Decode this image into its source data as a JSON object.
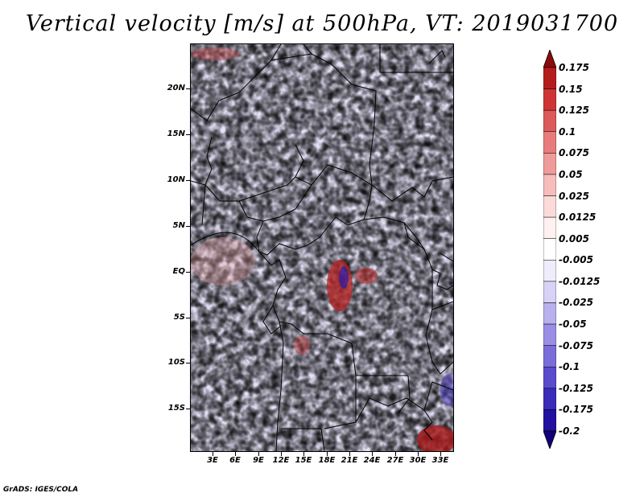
{
  "title": "Vertical velocity [m/s] at 500hPa, VT: 2019031700",
  "credit": "GrADS: IGES/COLA",
  "map": {
    "lat_labels": [
      "20N",
      "15N",
      "10N",
      "5N",
      "EQ",
      "5S",
      "10S",
      "15S"
    ],
    "lon_labels": [
      "3E",
      "6E",
      "9E",
      "12E",
      "15E",
      "18E",
      "21E",
      "24E",
      "27E",
      "30E",
      "33E"
    ]
  },
  "colorbar": {
    "levels": [
      "0.175",
      "0.15",
      "0.125",
      "0.1",
      "0.075",
      "0.05",
      "0.025",
      "0.0125",
      "0.005",
      "-0.005",
      "-0.0125",
      "-0.025",
      "-0.05",
      "-0.075",
      "-0.1",
      "-0.125",
      "-0.175",
      "-0.2"
    ],
    "colors": [
      "#8b0a0a",
      "#b41c1c",
      "#cf3434",
      "#dd5a5a",
      "#e87c7c",
      "#f09b9b",
      "#f7bcbc",
      "#fcdada",
      "#fff1f1",
      "#ffffff",
      "#efedfb",
      "#d7d2f6",
      "#b9b1ee",
      "#9a8fe4",
      "#7a6dd9",
      "#5a4bcc",
      "#3a2bb8",
      "#2210a0",
      "#12007a"
    ]
  }
}
